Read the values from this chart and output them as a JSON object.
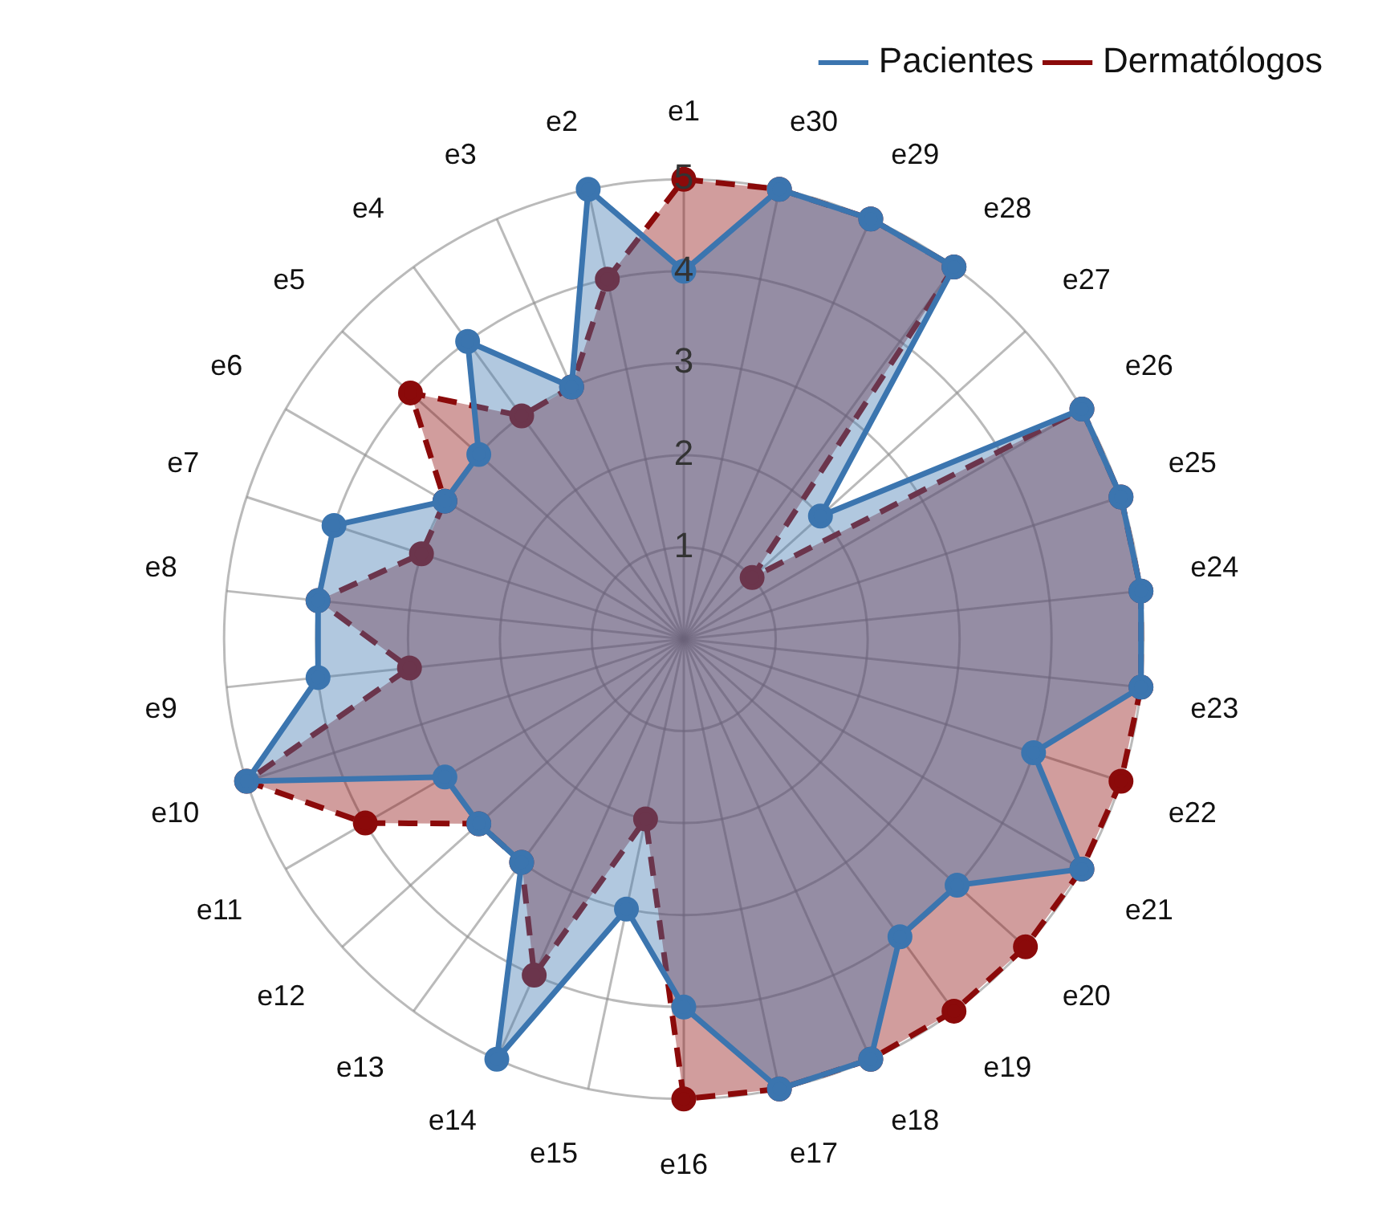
{
  "chart_data": {
    "type": "radar",
    "categories": [
      "e1",
      "e30",
      "e29",
      "e28",
      "e27",
      "e26",
      "e25",
      "e24",
      "e23",
      "e22",
      "e21",
      "e20",
      "e19",
      "e18",
      "e17",
      "e16",
      "e15",
      "e14",
      "e13",
      "e12",
      "e11",
      "e10",
      "e9",
      "e8",
      "e7",
      "e6",
      "e5",
      "e4",
      "e3",
      "e2"
    ],
    "series": [
      {
        "name": "Pacientes",
        "color": "#3b75af",
        "line_style": "solid",
        "values": [
          4,
          5,
          5,
          5,
          2,
          5,
          5,
          5,
          5,
          4,
          5,
          4,
          4,
          5,
          5,
          4,
          3,
          5,
          3,
          3,
          3,
          5,
          4,
          4,
          4,
          3,
          3,
          4,
          3,
          5
        ]
      },
      {
        "name": "Dermatólogos",
        "color": "#8b0a0a",
        "line_style": "dashed",
        "values": [
          5,
          5,
          5,
          5,
          1,
          5,
          5,
          5,
          5,
          5,
          5,
          5,
          5,
          5,
          5,
          5,
          2,
          4,
          3,
          3,
          4,
          5,
          3,
          4,
          3,
          3,
          4,
          3,
          3,
          4
        ]
      }
    ],
    "ylim": [
      0,
      5
    ],
    "yticks": [
      1,
      2,
      3,
      4,
      5
    ],
    "grid": true,
    "legend": "top right",
    "marker": "circle"
  }
}
